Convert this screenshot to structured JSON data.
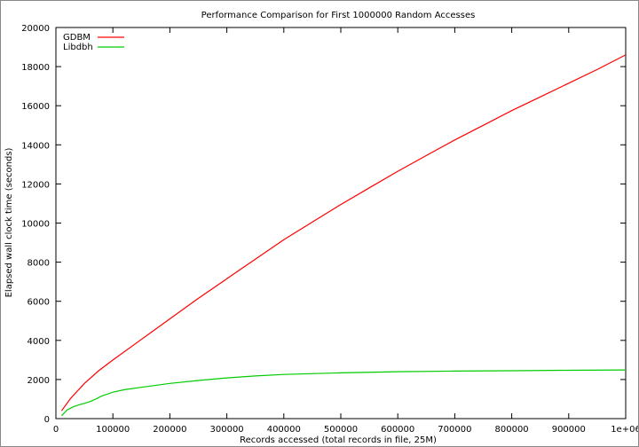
{
  "chart_data": {
    "type": "line",
    "title": "Performance Comparison for First 1000000 Random Accesses",
    "xlabel": "Records accessed (total records in file, 25M)",
    "ylabel": "Elapsed wall clock time (seconds)",
    "xlim": [
      0,
      1000000
    ],
    "ylim": [
      0,
      20000
    ],
    "x_ticks": [
      0,
      100000,
      200000,
      300000,
      400000,
      500000,
      600000,
      700000,
      800000,
      900000,
      1000000
    ],
    "x_tick_labels": [
      "0",
      "100000",
      "200000",
      "300000",
      "400000",
      "500000",
      "600000",
      "700000",
      "800000",
      "900000",
      "1e+06"
    ],
    "y_ticks": [
      0,
      2000,
      4000,
      6000,
      8000,
      10000,
      12000,
      14000,
      16000,
      18000,
      20000
    ],
    "y_tick_labels": [
      "0",
      "2000",
      "4000",
      "6000",
      "8000",
      "10000",
      "12000",
      "14000",
      "16000",
      "18000",
      "20000"
    ],
    "grid": false,
    "legend_position": "top-left",
    "series": [
      {
        "name": "GDBM",
        "color": "#ff0000",
        "x": [
          10000,
          25000,
          50000,
          75000,
          100000,
          150000,
          200000,
          250000,
          300000,
          350000,
          400000,
          450000,
          500000,
          550000,
          600000,
          650000,
          700000,
          750000,
          800000,
          850000,
          900000,
          950000,
          1000000
        ],
        "y": [
          400,
          1000,
          1800,
          2450,
          3000,
          4050,
          5100,
          6150,
          7150,
          8150,
          9150,
          10050,
          10950,
          11800,
          12650,
          13450,
          14250,
          15000,
          15750,
          16450,
          17150,
          17850,
          18600
        ]
      },
      {
        "name": "Libdbh",
        "color": "#00cc00",
        "x": [
          10000,
          20000,
          30000,
          40000,
          50000,
          60000,
          70000,
          80000,
          90000,
          100000,
          120000,
          150000,
          200000,
          250000,
          300000,
          350000,
          400000,
          500000,
          600000,
          700000,
          800000,
          900000,
          1000000
        ],
        "y": [
          150,
          450,
          600,
          700,
          780,
          870,
          1000,
          1150,
          1250,
          1350,
          1480,
          1600,
          1800,
          1950,
          2080,
          2180,
          2260,
          2340,
          2400,
          2430,
          2450,
          2470,
          2490
        ]
      }
    ]
  }
}
